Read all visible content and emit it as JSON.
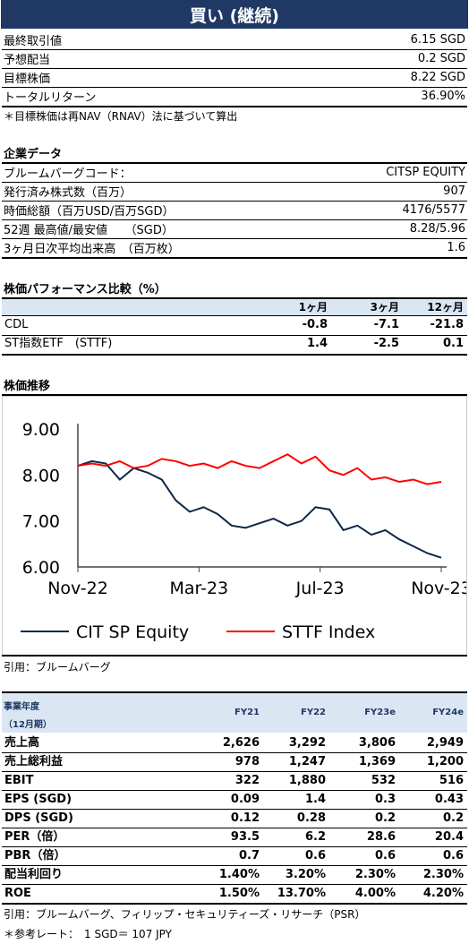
{
  "banner": "買い (継続)",
  "summary": [
    {
      "label": "最終取引値",
      "value": "6.15 SGD"
    },
    {
      "label": "予想配当",
      "value": "0.2 SGD"
    },
    {
      "label": "目標株価",
      "value": "8.22 SGD"
    },
    {
      "label": "トータルリターン",
      "value": "36.90%"
    }
  ],
  "note": "＊目標株価は再NAV（RNAV）法に基づいて算出",
  "company": {
    "title": "企業データ",
    "rows": [
      {
        "label": "ブルームバーグコード：",
        "value": "CITSP EQUITY"
      },
      {
        "label": "発行済み株式数（百万）",
        "value": "907"
      },
      {
        "label": "時価総額（百万USD/百万SGD）",
        "value": "4176/5577"
      },
      {
        "label": "52週 最高値/最安値　　（SGD）",
        "value": "8.28/5.96"
      },
      {
        "label": "3ヶ月日次平均出来高　（百万枚）",
        "value": "1.6"
      }
    ]
  },
  "perf": {
    "title": "株価パフォーマンス比較（%）",
    "headers": [
      "1ヶ月",
      "3ヶ月",
      "12ヶ月"
    ],
    "rows": [
      {
        "label": "CDL",
        "vals": [
          "-0.8",
          "-7.1",
          "-21.8"
        ]
      },
      {
        "label": "ST指数ETF　(STTF)",
        "vals": [
          "1.4",
          "-2.5",
          "0.1"
        ]
      }
    ]
  },
  "chart_title": "株価推移",
  "chart_data": {
    "type": "line",
    "x_ticks": [
      "Nov-22",
      "Mar-23",
      "Jul-23",
      "Nov-23"
    ],
    "y_ticks": [
      "9.00",
      "8.00",
      "7.00",
      "6.00"
    ],
    "ylim": [
      6.0,
      9.0
    ],
    "x": [
      0,
      2,
      4,
      6,
      8,
      10,
      12,
      14,
      16,
      18,
      20,
      22,
      24,
      26,
      28,
      30,
      32,
      34,
      36,
      38,
      40,
      42,
      44,
      46,
      48,
      50,
      52
    ],
    "series": [
      {
        "name": "CIT SP Equity",
        "color": "#0d2845",
        "values": [
          8.2,
          8.3,
          8.25,
          7.9,
          8.15,
          8.05,
          7.9,
          7.45,
          7.2,
          7.3,
          7.15,
          6.9,
          6.85,
          6.95,
          7.05,
          6.9,
          7.0,
          7.3,
          7.25,
          6.8,
          6.9,
          6.7,
          6.8,
          6.6,
          6.45,
          6.3,
          6.2
        ]
      },
      {
        "name": "STTF Index",
        "color": "#ff0000",
        "values": [
          8.2,
          8.25,
          8.2,
          8.3,
          8.15,
          8.2,
          8.35,
          8.3,
          8.2,
          8.25,
          8.15,
          8.3,
          8.2,
          8.15,
          8.3,
          8.45,
          8.25,
          8.4,
          8.1,
          8.0,
          8.15,
          7.9,
          7.95,
          7.85,
          7.9,
          7.8,
          7.85
        ]
      }
    ]
  },
  "chart_source": "引用：ブルームバーグ",
  "fin": {
    "head1": "事業年度",
    "head2": "（12月期）",
    "cols": [
      "FY21",
      "FY22",
      "FY23e",
      "FY24e"
    ],
    "rows": [
      {
        "label": "売上高",
        "vals": [
          "2,626",
          "3,292",
          "3,806",
          "2,949"
        ]
      },
      {
        "label": "売上総利益",
        "vals": [
          "978",
          "1,247",
          "1,369",
          "1,200"
        ]
      },
      {
        "label": "EBIT",
        "vals": [
          "322",
          "1,880",
          "532",
          "516"
        ]
      },
      {
        "label": "EPS (SGD)",
        "vals": [
          "0.09",
          "1.4",
          "0.3",
          "0.43"
        ]
      },
      {
        "label": "DPS (SGD)",
        "vals": [
          "0.12",
          "0.28",
          "0.2",
          "0.2"
        ]
      },
      {
        "label": "PER（倍）",
        "vals": [
          "93.5",
          "6.2",
          "28.6",
          "20.4"
        ]
      },
      {
        "label": "PBR（倍）",
        "vals": [
          "0.7",
          "0.6",
          "0.6",
          "0.6"
        ]
      },
      {
        "label": "配当利回り",
        "vals": [
          "1.40%",
          "3.20%",
          "2.30%",
          "2.30%"
        ]
      },
      {
        "label": "ROE",
        "vals": [
          "1.50%",
          "13.70%",
          "4.00%",
          "4.20%"
        ]
      }
    ]
  },
  "fin_source": "引用：ブルームバーグ、フィリップ・セキュリティーズ・リサーチ（PSR）",
  "rate": "＊参考レート：　1 SGD＝ 107 JPY"
}
